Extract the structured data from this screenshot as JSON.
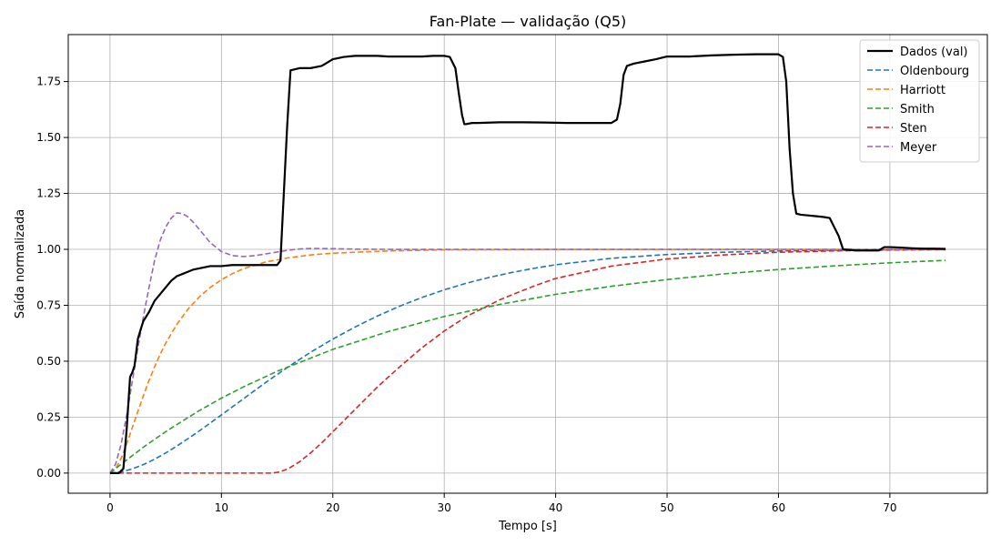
{
  "chart_data": {
    "type": "line",
    "title": "Fan-Plate — validação (Q5)",
    "xlabel": "Tempo [s]",
    "ylabel": "Saída normalizada",
    "xlim": [
      -3.75,
      78.75
    ],
    "ylim": [
      -0.09,
      1.96
    ],
    "xticks": [
      0,
      10,
      20,
      30,
      40,
      50,
      60,
      70
    ],
    "xtick_labels": [
      "0",
      "10",
      "20",
      "30",
      "40",
      "50",
      "60",
      "70"
    ],
    "yticks": [
      0.0,
      0.25,
      0.5,
      0.75,
      1.0,
      1.25,
      1.5,
      1.75
    ],
    "ytick_labels": [
      "0.00",
      "0.25",
      "0.50",
      "0.75",
      "1.00",
      "1.25",
      "1.50",
      "1.75"
    ],
    "grid": true,
    "legend_position": "top-right",
    "series": [
      {
        "name": "Dados (val)",
        "color": "#000000",
        "style": "solid",
        "x": [
          0,
          0.8,
          1.2,
          1.5,
          1.8,
          2.0,
          2.2,
          2.5,
          2.8,
          3.0,
          3.5,
          4.0,
          4.5,
          5.0,
          5.5,
          6.0,
          6.5,
          7.0,
          7.5,
          8.0,
          9.0,
          10.0,
          11.0,
          12.0,
          13.0,
          14.0,
          15.0,
          15.3,
          15.6,
          15.9,
          16.2,
          17.0,
          18.0,
          19.0,
          20.0,
          21.0,
          22.0,
          23.0,
          24.0,
          25.0,
          26.0,
          27.0,
          28.0,
          29.0,
          30.0,
          30.5,
          31.0,
          31.3,
          31.6,
          31.8,
          32.0,
          32.5,
          33.0,
          35.0,
          37.0,
          39.0,
          41.0,
          43.0,
          45.0,
          45.5,
          45.8,
          46.1,
          46.4,
          47.0,
          48.0,
          49.0,
          50.0,
          52.0,
          54.0,
          56.0,
          58.0,
          60.0,
          60.4,
          60.7,
          61.0,
          61.3,
          61.6,
          62.0,
          63.0,
          64.0,
          64.6,
          65.0,
          65.4,
          65.8,
          67.0,
          68.0,
          69.0,
          69.5,
          70.0,
          71.0,
          72.0,
          73.0,
          74.0,
          75.0
        ],
        "y": [
          0,
          0,
          0.02,
          0.2,
          0.43,
          0.45,
          0.48,
          0.6,
          0.65,
          0.68,
          0.72,
          0.77,
          0.8,
          0.83,
          0.86,
          0.88,
          0.89,
          0.9,
          0.91,
          0.915,
          0.925,
          0.925,
          0.93,
          0.93,
          0.93,
          0.93,
          0.93,
          0.95,
          1.25,
          1.55,
          1.8,
          1.81,
          1.81,
          1.82,
          1.85,
          1.86,
          1.865,
          1.865,
          1.865,
          1.862,
          1.862,
          1.862,
          1.862,
          1.865,
          1.865,
          1.86,
          1.81,
          1.7,
          1.6,
          1.56,
          1.56,
          1.565,
          1.565,
          1.568,
          1.568,
          1.567,
          1.565,
          1.565,
          1.565,
          1.58,
          1.65,
          1.78,
          1.82,
          1.83,
          1.84,
          1.85,
          1.862,
          1.862,
          1.867,
          1.87,
          1.872,
          1.872,
          1.86,
          1.75,
          1.45,
          1.25,
          1.16,
          1.155,
          1.15,
          1.145,
          1.14,
          1.1,
          1.06,
          1.0,
          0.995,
          0.995,
          0.995,
          1.01,
          1.01,
          1.008,
          1.005,
          1.003,
          1.003,
          1.002
        ]
      },
      {
        "name": "Oldenbourg",
        "color": "#1f77b4",
        "style": "dashed",
        "x": [
          0,
          1,
          2,
          3,
          4,
          5,
          6,
          7,
          8,
          9,
          10,
          12,
          14,
          16,
          18,
          20,
          22,
          24,
          26,
          28,
          30,
          32,
          34,
          36,
          38,
          40,
          45,
          50,
          55,
          60,
          65,
          70,
          75
        ],
        "y": [
          0,
          0.005,
          0.019,
          0.038,
          0.062,
          0.09,
          0.121,
          0.154,
          0.188,
          0.224,
          0.26,
          0.333,
          0.406,
          0.475,
          0.54,
          0.599,
          0.653,
          0.702,
          0.746,
          0.785,
          0.819,
          0.849,
          0.874,
          0.896,
          0.915,
          0.931,
          0.96,
          0.977,
          0.987,
          0.993,
          0.996,
          0.998,
          0.999
        ]
      },
      {
        "name": "Harriott",
        "color": "#ff7f0e",
        "style": "dashed",
        "x": [
          0,
          0.5,
          1,
          1.5,
          2,
          2.5,
          3,
          3.5,
          4,
          4.5,
          5,
          6,
          7,
          8,
          9,
          10,
          11,
          12,
          14,
          16,
          18,
          20,
          25,
          30,
          40,
          50,
          60,
          70,
          75
        ],
        "y": [
          0,
          0.019,
          0.067,
          0.131,
          0.203,
          0.276,
          0.347,
          0.414,
          0.475,
          0.531,
          0.581,
          0.665,
          0.733,
          0.787,
          0.83,
          0.864,
          0.892,
          0.914,
          0.944,
          0.962,
          0.975,
          0.983,
          0.993,
          0.998,
          1.0,
          1.0,
          1.0,
          1.0,
          1.0
        ]
      },
      {
        "name": "Smith",
        "color": "#2ca02c",
        "style": "dashed",
        "x": [
          0,
          1,
          2,
          3,
          4,
          5,
          6,
          8,
          10,
          12,
          15,
          20,
          25,
          30,
          35,
          40,
          45,
          50,
          55,
          60,
          65,
          70,
          75
        ],
        "y": [
          0,
          0.04,
          0.078,
          0.116,
          0.151,
          0.185,
          0.217,
          0.279,
          0.335,
          0.386,
          0.455,
          0.553,
          0.633,
          0.7,
          0.754,
          0.799,
          0.835,
          0.865,
          0.89,
          0.91,
          0.926,
          0.94,
          0.951
        ]
      },
      {
        "name": "Sten",
        "color": "#d62728",
        "style": "dashed",
        "x": [
          0,
          5,
          10,
          14,
          14.5,
          15,
          15.5,
          16,
          17,
          18,
          19,
          20,
          22,
          24,
          26,
          28,
          30,
          32,
          35,
          38,
          40,
          45,
          50,
          55,
          60,
          65,
          70,
          75
        ],
        "y": [
          0,
          0,
          0,
          0,
          0.0,
          0.003,
          0.01,
          0.02,
          0.05,
          0.09,
          0.135,
          0.185,
          0.285,
          0.385,
          0.475,
          0.56,
          0.635,
          0.7,
          0.775,
          0.835,
          0.87,
          0.925,
          0.957,
          0.975,
          0.987,
          0.993,
          0.997,
          0.999
        ]
      },
      {
        "name": "Meyer",
        "color": "#9467bd",
        "style": "dashed",
        "x": [
          0,
          0.5,
          1,
          1.5,
          2,
          2.5,
          3,
          3.5,
          4,
          4.5,
          5,
          5.5,
          6,
          6.5,
          7,
          7.5,
          8,
          8.5,
          9,
          10,
          11,
          12,
          13,
          14,
          15,
          16,
          17,
          18,
          20,
          22,
          25,
          30,
          40,
          50,
          60,
          70,
          75
        ],
        "y": [
          0,
          0.04,
          0.13,
          0.26,
          0.41,
          0.56,
          0.7,
          0.83,
          0.95,
          1.04,
          1.1,
          1.14,
          1.163,
          1.16,
          1.145,
          1.12,
          1.09,
          1.06,
          1.03,
          0.99,
          0.972,
          0.968,
          0.972,
          0.98,
          0.988,
          0.996,
          1.002,
          1.004,
          1.003,
          1.001,
          1.0,
          1.0,
          1.0,
          1.0,
          1.0,
          1.0,
          1.0
        ]
      }
    ]
  }
}
